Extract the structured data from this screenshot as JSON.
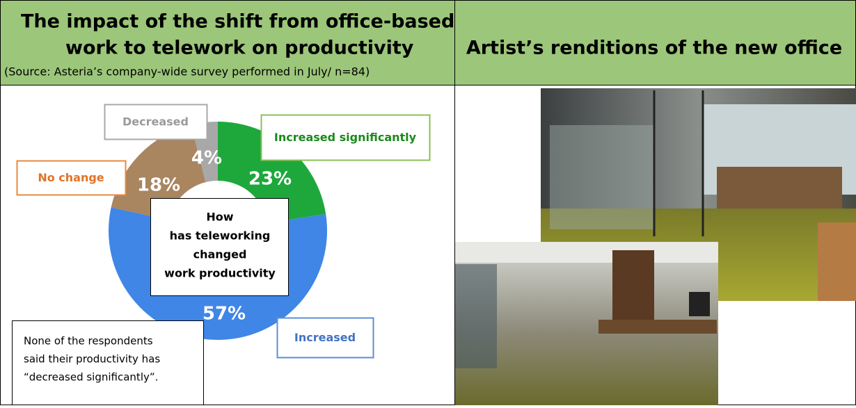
{
  "left_header": {
    "title_lines": [
      "The impact of the shift from office-based",
      "work to telework on productivity"
    ],
    "source": "(Source: Asteria’s company-wide survey performed in July/ n=84)"
  },
  "right_header": {
    "title": "Artist’s renditions of the new office"
  },
  "chart_data": {
    "type": "pie",
    "categories": [
      "Increased significantly",
      "Increased",
      "No change",
      "Decreased"
    ],
    "values": [
      23,
      57,
      18,
      4
    ],
    "value_labels": [
      "23%",
      "57%",
      "18%",
      "4%"
    ],
    "colors": [
      "#1ea83c",
      "#3f86e6",
      "#a98560",
      "#a8a8a8"
    ],
    "center_lines": [
      "How",
      "has teleworking",
      "changed",
      "work productivity"
    ]
  },
  "note_lines": [
    "None of the respondents",
    "said their productivity has",
    "“decreased significantly”."
  ]
}
